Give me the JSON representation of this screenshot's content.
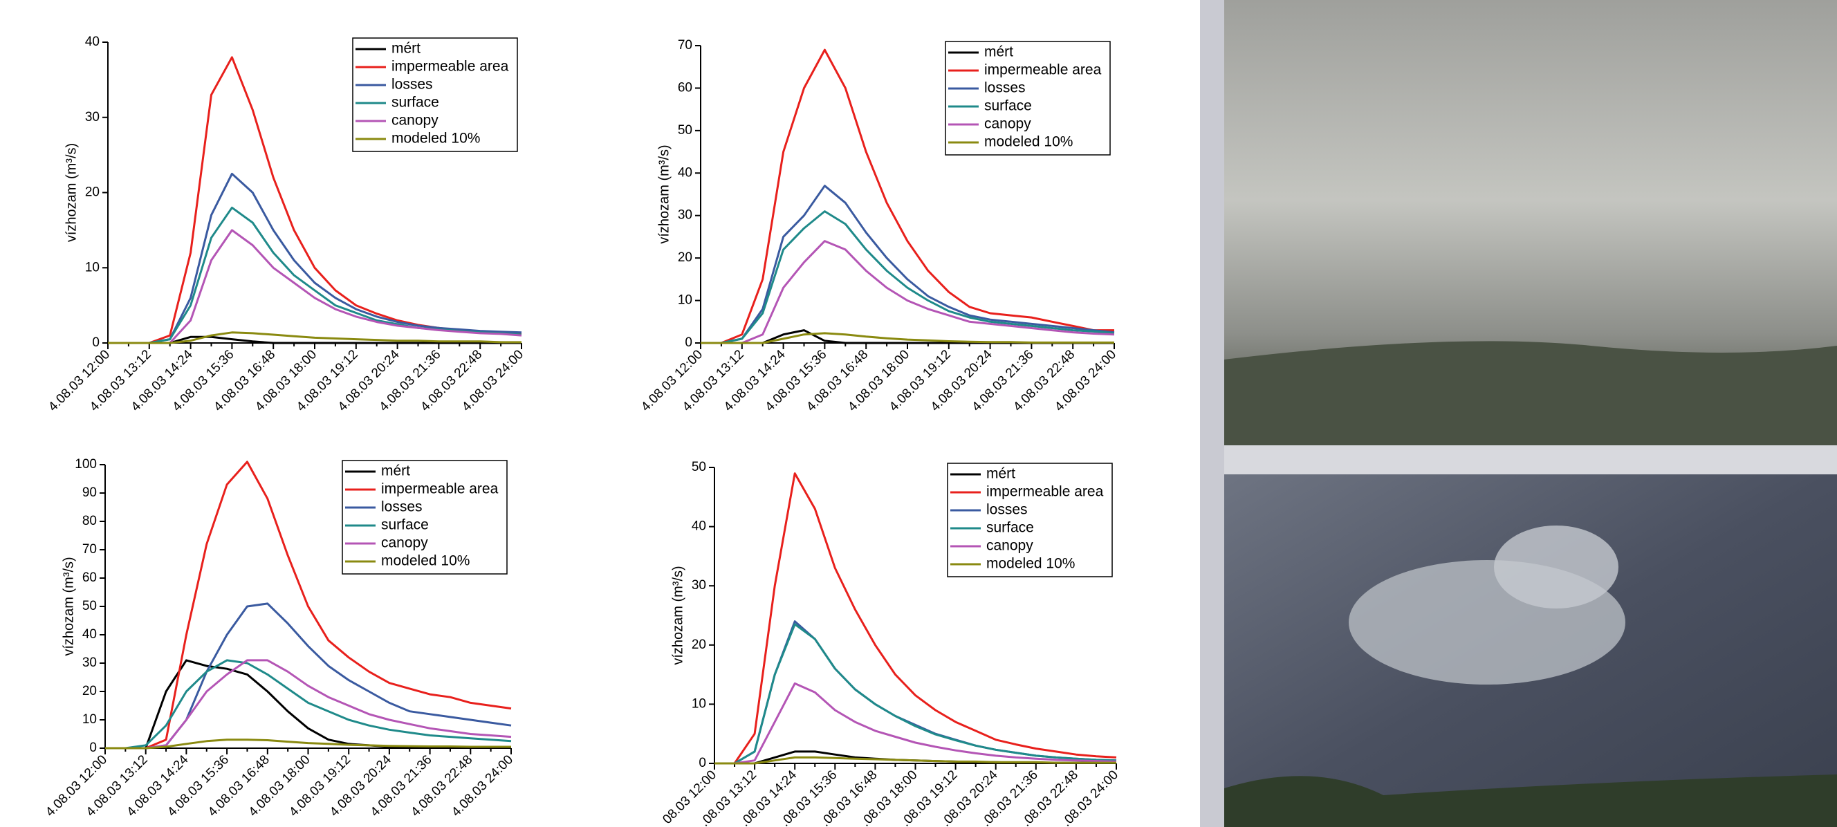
{
  "chart_data": [
    {
      "type": "line",
      "ylabel": "vízhozam (m³/s)",
      "legend": "upper right",
      "categories": [
        "4.08.03 12:00",
        null,
        "4.08.03 13:12",
        null,
        "4.08.03 14:24",
        null,
        "4.08.03 15:36",
        null,
        "4.08.03 16:48",
        null,
        "4.08.03 18:00",
        null,
        "4.08.03 19:12",
        null,
        "4.08.03 20:24",
        null,
        "4.08.03 21:36",
        null,
        "4.08.03 22:48",
        null,
        "4.08.03 24:00"
      ],
      "ylim": [
        0,
        40
      ],
      "yticks": [
        0,
        10,
        20,
        30,
        40
      ],
      "series": [
        {
          "name": "mért",
          "color": "#000000",
          "values": [
            0,
            0,
            0,
            0,
            0.8,
            0.8,
            0.5,
            0.2,
            0,
            0,
            0,
            0,
            0,
            0,
            0,
            0,
            0,
            0,
            0,
            0,
            0
          ]
        },
        {
          "name": "impermeable area",
          "color": "#e8201c",
          "values": [
            0,
            0,
            0,
            1,
            12,
            33,
            38,
            31,
            22,
            15,
            10,
            7,
            5,
            3.9,
            3,
            2.4,
            2,
            1.7,
            1.5,
            1.3,
            1.2
          ]
        },
        {
          "name": "losses",
          "color": "#3a5aa0",
          "values": [
            0,
            0,
            0,
            0.5,
            6,
            17,
            22.5,
            20,
            15,
            11,
            8,
            6,
            4.5,
            3.5,
            2.8,
            2.3,
            2,
            1.8,
            1.6,
            1.5,
            1.4
          ]
        },
        {
          "name": "surface",
          "color": "#1f8a8a",
          "values": [
            0,
            0,
            0,
            0.5,
            5,
            14,
            18,
            16,
            12,
            9,
            7,
            5,
            4,
            3,
            2.5,
            2,
            1.8,
            1.6,
            1.4,
            1.3,
            1.1
          ]
        },
        {
          "name": "canopy",
          "color": "#b455b5",
          "values": [
            0,
            0,
            0,
            0,
            3,
            11,
            15,
            13,
            10,
            8,
            6,
            4.5,
            3.5,
            2.8,
            2.3,
            2,
            1.7,
            1.5,
            1.3,
            1.2,
            1
          ]
        },
        {
          "name": "modeled 10%",
          "color": "#8a8a10",
          "values": [
            0,
            0,
            0,
            0,
            0.3,
            1,
            1.4,
            1.3,
            1.1,
            0.9,
            0.7,
            0.6,
            0.5,
            0.4,
            0.3,
            0.3,
            0.2,
            0.2,
            0.2,
            0.1,
            0.1
          ]
        }
      ]
    },
    {
      "type": "line",
      "ylabel": "vízhozam (m³/s)",
      "legend": "upper right",
      "categories": [
        "4.08.03 12:00",
        null,
        "4.08.03 13:12",
        null,
        "4.08.03 14:24",
        null,
        "4.08.03 15:36",
        null,
        "4.08.03 16:48",
        null,
        "4.08.03 18:00",
        null,
        "4.08.03 19:12",
        null,
        "4.08.03 20:24",
        null,
        "4.08.03 21:36",
        null,
        "4.08.03 22:48",
        null,
        "4.08.03 24:00"
      ],
      "ylim": [
        0,
        70
      ],
      "yticks": [
        0,
        10,
        20,
        30,
        40,
        50,
        60,
        70
      ],
      "series": [
        {
          "name": "mért",
          "color": "#000000",
          "values": [
            0,
            0,
            0,
            0,
            2,
            3,
            0.5,
            0,
            0,
            0,
            0,
            0,
            0,
            0,
            0,
            0,
            0,
            0,
            0,
            0,
            0
          ]
        },
        {
          "name": "impermeable area",
          "color": "#e8201c",
          "values": [
            0,
            0,
            2,
            15,
            45,
            60,
            69,
            60,
            45,
            33,
            24,
            17,
            12,
            8.5,
            7,
            6.5,
            6,
            5,
            4,
            3,
            3
          ]
        },
        {
          "name": "losses",
          "color": "#3a5aa0",
          "values": [
            0,
            0,
            1,
            8,
            25,
            30,
            37,
            33,
            26,
            20,
            15,
            11,
            8.5,
            6.5,
            5.5,
            5,
            4.5,
            4,
            3.5,
            3,
            2.5
          ]
        },
        {
          "name": "surface",
          "color": "#1f8a8a",
          "values": [
            0,
            0,
            1,
            7,
            22,
            27,
            31,
            28,
            22,
            17,
            13,
            10,
            7.5,
            6,
            5,
            4.5,
            4,
            3.5,
            3,
            2.7,
            2.3
          ]
        },
        {
          "name": "canopy",
          "color": "#b455b5",
          "values": [
            0,
            0,
            0,
            2,
            13,
            19,
            24,
            22,
            17,
            13,
            10,
            8,
            6.5,
            5,
            4.5,
            4,
            3.5,
            3,
            2.5,
            2.2,
            2
          ]
        },
        {
          "name": "modeled 10%",
          "color": "#8a8a10",
          "values": [
            0,
            0,
            0,
            0,
            1,
            2,
            2.3,
            2,
            1.5,
            1.1,
            0.8,
            0.6,
            0.4,
            0.3,
            0.2,
            0.2,
            0.1,
            0.1,
            0.1,
            0.1,
            0.1
          ]
        }
      ]
    },
    {
      "type": "line",
      "ylabel": "vízhozam (m³/s)",
      "legend": "upper right",
      "categories": [
        "4.08.03 12:00",
        null,
        "4.08.03 13:12",
        null,
        "4.08.03 14:24",
        null,
        "4.08.03 15:36",
        null,
        "4.08.03 16:48",
        null,
        "4.08.03 18:00",
        null,
        "4.08.03 19:12",
        null,
        "4.08.03 20:24",
        null,
        "4.08.03 21:36",
        null,
        "4.08.03 22:48",
        null,
        "4.08.03 24:00"
      ],
      "ylim": [
        0,
        100
      ],
      "yticks": [
        0,
        10,
        20,
        30,
        40,
        50,
        60,
        70,
        80,
        90,
        100
      ],
      "series": [
        {
          "name": "mért",
          "color": "#000000",
          "values": [
            0,
            0,
            0,
            20,
            31,
            29,
            28,
            26,
            20,
            13,
            7,
            3,
            1.5,
            1,
            0.5,
            0.3,
            0.3,
            0.2,
            0.2,
            0.2,
            0.2
          ]
        },
        {
          "name": "impermeable area",
          "color": "#e8201c",
          "values": [
            0,
            0,
            0,
            3,
            40,
            72,
            93,
            101,
            88,
            68,
            50,
            38,
            32,
            27,
            23,
            21,
            19,
            18,
            16,
            15,
            14
          ]
        },
        {
          "name": "losses",
          "color": "#3a5aa0",
          "values": [
            0,
            0,
            0,
            1,
            10,
            27,
            40,
            50,
            51,
            44,
            36,
            29,
            24,
            20,
            16,
            13,
            12,
            11,
            10,
            9,
            8
          ]
        },
        {
          "name": "surface",
          "color": "#1f8a8a",
          "values": [
            0,
            0,
            1,
            8,
            20,
            27,
            31,
            30,
            26,
            21,
            16,
            13,
            10,
            8,
            6.5,
            5.5,
            4.5,
            4,
            3.5,
            3,
            2.5
          ]
        },
        {
          "name": "canopy",
          "color": "#b455b5",
          "values": [
            0,
            0,
            0,
            1,
            10,
            20,
            26,
            31,
            31,
            27,
            22,
            18,
            15,
            12,
            10,
            8.5,
            7,
            6,
            5,
            4.5,
            4
          ]
        },
        {
          "name": "modeled 10%",
          "color": "#8a8a10",
          "values": [
            0,
            0,
            0,
            0.5,
            1.5,
            2.5,
            3,
            3,
            2.8,
            2.3,
            1.8,
            1.5,
            1.2,
            1,
            0.8,
            0.7,
            0.6,
            0.6,
            0.5,
            0.5,
            0.5
          ]
        }
      ]
    },
    {
      "type": "line",
      "ylabel": "vízhozam (m³/s)",
      "legend": "upper right",
      "categories": [
        "08.03 12:00",
        null,
        ".08.03 13:12",
        null,
        ".08.03 14:24",
        null,
        ".08.03 15:36",
        null,
        ".08.03 16:48",
        null,
        ".08.03 18:00",
        null,
        ".08.03 19:12",
        null,
        ".08.03 20:24",
        null,
        ".08.03 21:36",
        null,
        ".08.03 22:48",
        null,
        ".08.03 24:00"
      ],
      "ylim": [
        0,
        50
      ],
      "yticks": [
        0,
        10,
        20,
        30,
        40,
        50
      ],
      "series": [
        {
          "name": "mért",
          "color": "#000000",
          "values": [
            0,
            0,
            0,
            1,
            2,
            2,
            1.5,
            1,
            0.8,
            0.6,
            0.5,
            0.4,
            0.3,
            0.2,
            0.2,
            0.1,
            0.1,
            0.1,
            0.1,
            0.1,
            0.1
          ]
        },
        {
          "name": "impermeable area",
          "color": "#e8201c",
          "values": [
            0,
            0,
            5,
            30,
            49,
            43,
            33,
            26,
            20,
            15,
            11.5,
            9,
            7,
            5.5,
            4,
            3.2,
            2.5,
            2,
            1.5,
            1.2,
            1
          ]
        },
        {
          "name": "losses",
          "color": "#3a5aa0",
          "values": [
            0,
            0,
            2,
            15,
            24,
            21,
            16,
            12.5,
            10,
            8,
            6.5,
            5,
            4,
            3,
            2.3,
            1.8,
            1.3,
            1,
            0.8,
            0.6,
            0.5
          ]
        },
        {
          "name": "surface",
          "color": "#1f8a8a",
          "values": [
            0,
            0,
            2,
            15,
            23.5,
            21,
            16,
            12.5,
            10,
            8,
            6.3,
            4.9,
            3.9,
            3,
            2.3,
            1.8,
            1.3,
            1,
            0.8,
            0.6,
            0.5
          ]
        },
        {
          "name": "canopy",
          "color": "#b455b5",
          "values": [
            0,
            0,
            0.5,
            7,
            13.5,
            12,
            9,
            7,
            5.5,
            4.5,
            3.5,
            2.8,
            2.2,
            1.7,
            1.3,
            1,
            0.8,
            0.6,
            0.5,
            0.4,
            0.3
          ]
        },
        {
          "name": "modeled 10%",
          "color": "#8a8a10",
          "values": [
            0,
            0,
            0,
            0.5,
            1,
            1,
            0.9,
            0.8,
            0.7,
            0.6,
            0.5,
            0.4,
            0.3,
            0.3,
            0.2,
            0.2,
            0.2,
            0.1,
            0.1,
            0.1,
            0.1
          ]
        }
      ]
    }
  ]
}
